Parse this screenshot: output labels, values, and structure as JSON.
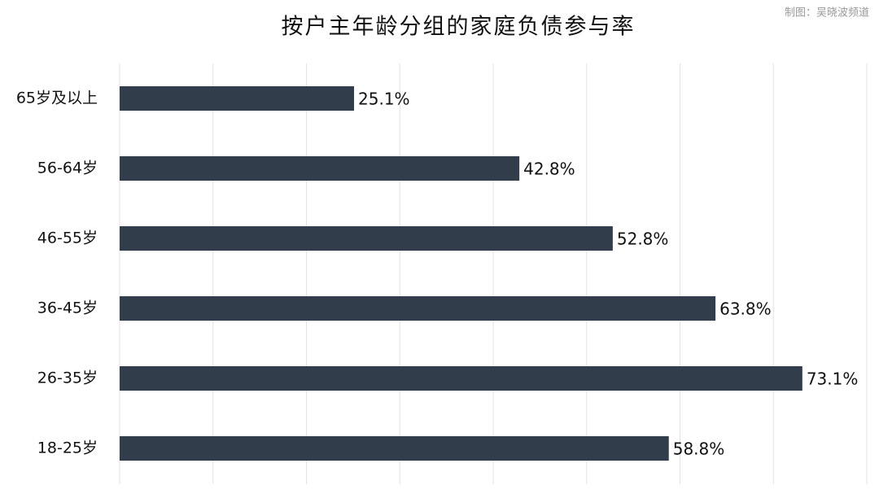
{
  "chart_data": {
    "type": "barh",
    "title": "按户主年龄分组的家庭负债参与率",
    "credit": "制图：吴晓波频道",
    "categories": [
      "65岁及以上",
      "56-64岁",
      "46-55岁",
      "36-45岁",
      "26-35岁",
      "18-25岁"
    ],
    "values": [
      25.1,
      42.8,
      52.8,
      63.8,
      73.1,
      58.8
    ],
    "value_labels": [
      "25.1%",
      "42.8%",
      "52.8%",
      "63.8%",
      "73.1%",
      "58.8%"
    ],
    "color": "#323d4c",
    "xlim": [
      0,
      80
    ],
    "xticks": [
      0,
      10,
      20,
      30,
      40,
      50,
      60,
      70,
      80
    ],
    "grid": true
  }
}
